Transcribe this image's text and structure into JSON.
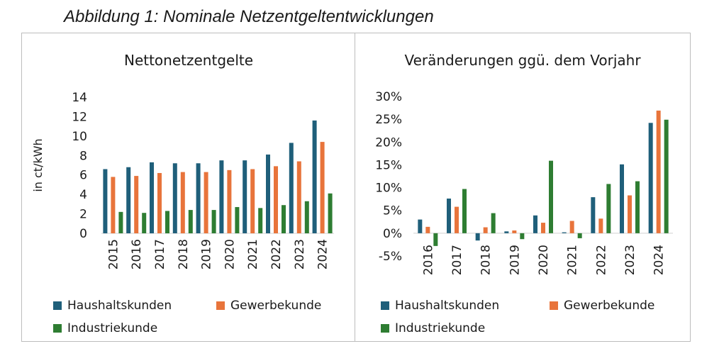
{
  "figure_title": "Abbildung 1: Nominale Netzentgeltentwicklungen",
  "colors": {
    "haushalt": "#1f5f7a",
    "gewerbe": "#e8743b",
    "industrie": "#2e7d32"
  },
  "chart_data": [
    {
      "type": "bar",
      "title": "Nettonetzentgelte",
      "ylabel": "in ct/kWh",
      "xlabel": "",
      "ylim": [
        0,
        14
      ],
      "yticks": [
        "0",
        "2",
        "4",
        "6",
        "8",
        "10",
        "12",
        "14"
      ],
      "categories": [
        "2015",
        "2016",
        "2017",
        "2018",
        "2019",
        "2020",
        "2021",
        "2022",
        "2023",
        "2024"
      ],
      "series": [
        {
          "name": "Haushaltskunden",
          "values": [
            6.6,
            6.8,
            7.3,
            7.2,
            7.2,
            7.5,
            7.5,
            8.1,
            9.3,
            11.6
          ]
        },
        {
          "name": "Gewerbekunde",
          "values": [
            5.8,
            5.9,
            6.2,
            6.3,
            6.3,
            6.5,
            6.6,
            6.9,
            7.4,
            9.4
          ]
        },
        {
          "name": "Industriekunde",
          "values": [
            2.2,
            2.1,
            2.3,
            2.4,
            2.4,
            2.7,
            2.6,
            2.9,
            3.3,
            4.1
          ]
        }
      ],
      "legend_position": "bottom"
    },
    {
      "type": "bar",
      "title": "Veränderungen ggü. dem  Vorjahr",
      "ylabel": "",
      "xlabel": "",
      "ylim": [
        -5,
        30
      ],
      "yticks": [
        "-5%",
        "0%",
        "5%",
        "10%",
        "15%",
        "20%",
        "25%",
        "30%"
      ],
      "categories": [
        "2016",
        "2017",
        "2018",
        "2019",
        "2020",
        "2021",
        "2022",
        "2023",
        "2024"
      ],
      "series": [
        {
          "name": "Haushaltskunden",
          "values": [
            3.0,
            7.6,
            -1.6,
            0.4,
            3.9,
            0.2,
            7.9,
            15.1,
            24.2
          ]
        },
        {
          "name": "Gewerbekunde",
          "values": [
            1.4,
            5.8,
            1.3,
            0.6,
            2.3,
            2.7,
            3.2,
            8.3,
            26.9
          ]
        },
        {
          "name": "Industriekunde",
          "values": [
            -2.8,
            9.7,
            4.4,
            -1.3,
            15.9,
            -1.1,
            10.8,
            11.4,
            24.9
          ]
        }
      ],
      "legend_position": "bottom"
    }
  ]
}
